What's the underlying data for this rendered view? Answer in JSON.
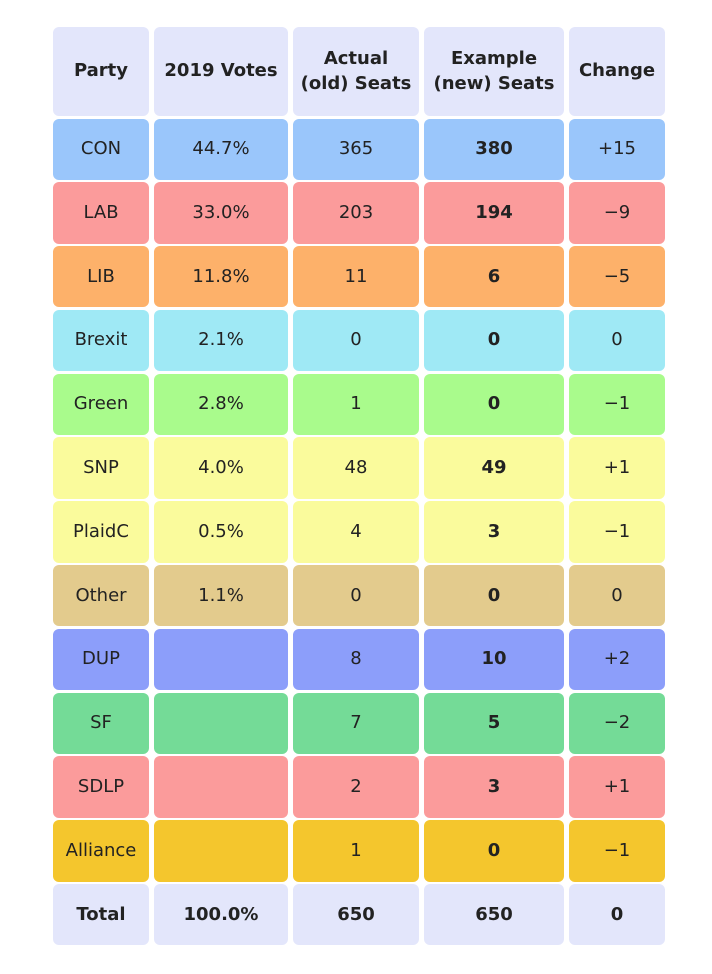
{
  "headers": [
    "Party",
    "2019 Votes",
    "Actual\n(old) Seats",
    "Example\n(new) Seats",
    "Change"
  ],
  "rows": [
    {
      "party": "CON",
      "votes": "44.7%",
      "old": "365",
      "new": "380",
      "change": "+15",
      "color": "#9ac6fb"
    },
    {
      "party": "LAB",
      "votes": "33.0%",
      "old": "203",
      "new": "194",
      "change": "−9",
      "color": "#fb9b9b"
    },
    {
      "party": "LIB",
      "votes": "11.8%",
      "old": "11",
      "new": "6",
      "change": "−5",
      "color": "#fdb16a"
    },
    {
      "party": "Brexit",
      "votes": "2.1%",
      "old": "0",
      "new": "0",
      "change": "0",
      "color": "#9fe9f5"
    },
    {
      "party": "Green",
      "votes": "2.8%",
      "old": "1",
      "new": "0",
      "change": "−1",
      "color": "#a9fb8c"
    },
    {
      "party": "SNP",
      "votes": "4.0%",
      "old": "48",
      "new": "49",
      "change": "+1",
      "color": "#fafb9c"
    },
    {
      "party": "PlaidC",
      "votes": "0.5%",
      "old": "4",
      "new": "3",
      "change": "−1",
      "color": "#fafb9c"
    },
    {
      "party": "Other",
      "votes": "1.1%",
      "old": "0",
      "new": "0",
      "change": "0",
      "color": "#e3cb8d"
    },
    {
      "party": "DUP",
      "votes": "",
      "old": "8",
      "new": "10",
      "change": "+2",
      "color": "#8c9efa"
    },
    {
      "party": "SF",
      "votes": "",
      "old": "7",
      "new": "5",
      "change": "−2",
      "color": "#74db97"
    },
    {
      "party": "SDLP",
      "votes": "",
      "old": "2",
      "new": "3",
      "change": "+1",
      "color": "#fb9b9b"
    },
    {
      "party": "Alliance",
      "votes": "",
      "old": "1",
      "new": "0",
      "change": "−1",
      "color": "#f4c62d"
    }
  ],
  "total": {
    "party": "Total",
    "votes": "100.0%",
    "old": "650",
    "new": "650",
    "change": "0"
  }
}
